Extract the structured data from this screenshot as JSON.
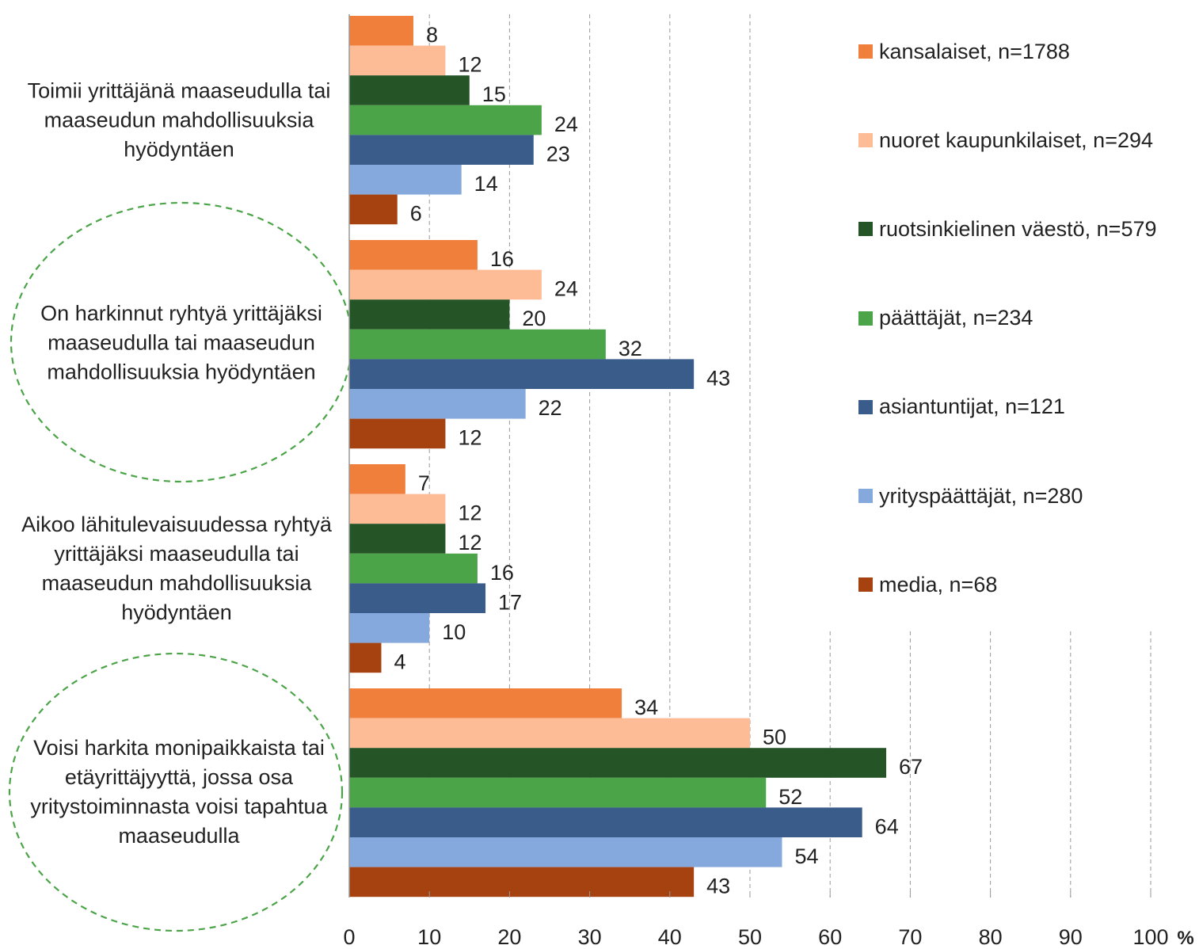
{
  "chart_data": {
    "type": "bar",
    "orientation": "horizontal",
    "categories": [
      "Toimii yrittäjänä maaseudulla tai maaseudun mahdollisuuksia hyödyntäen",
      "On harkinnut ryhtyä yrittäjäksi maaseudulla tai maaseudun mahdollisuuksia hyödyntäen",
      "Aikoo lähitulevaisuudessa ryhtyä yrittäjäksi maaseudulla tai maaseudun mahdollisuuksia hyödyntäen",
      "Voisi harkita monipaikkaista tai etäyrittäjyyttä, jossa osa yritystoiminnasta voisi tapahtua maaseudulla"
    ],
    "series": [
      {
        "name": "kansalaiset, n=1788",
        "color": "#F07F3C",
        "values": [
          8,
          16,
          7,
          34
        ]
      },
      {
        "name": "nuoret kaupunkilaiset, n=294",
        "color": "#FDBB96",
        "values": [
          12,
          24,
          12,
          50
        ]
      },
      {
        "name": "ruotsinkielinen väestö, n=579",
        "color": "#255426",
        "values": [
          15,
          20,
          12,
          67
        ]
      },
      {
        "name": "päättäjät, n=234",
        "color": "#4BA447",
        "values": [
          24,
          32,
          16,
          52
        ]
      },
      {
        "name": "asiantuntijat, n=121",
        "color": "#3A5C8A",
        "values": [
          23,
          43,
          17,
          64
        ]
      },
      {
        "name": "yrityspäättäjät, n=280",
        "color": "#85A9DC",
        "values": [
          14,
          22,
          10,
          54
        ]
      },
      {
        "name": "media, n=68",
        "color": "#A5420F",
        "values": [
          6,
          12,
          4,
          43
        ]
      }
    ],
    "x_ticks": [
      "0",
      "10",
      "20",
      "30",
      "40",
      "50",
      "60",
      "70",
      "80",
      "90",
      "100"
    ],
    "xlim": [
      0,
      100
    ],
    "x_unit": "%",
    "grid": "vertical dashed",
    "legend_position": "right",
    "highlighted_categories": [
      1,
      3
    ],
    "highlight_style": "dashed green ellipse",
    "highlight_color": "#4BA447",
    "axis_color": "#999999"
  }
}
